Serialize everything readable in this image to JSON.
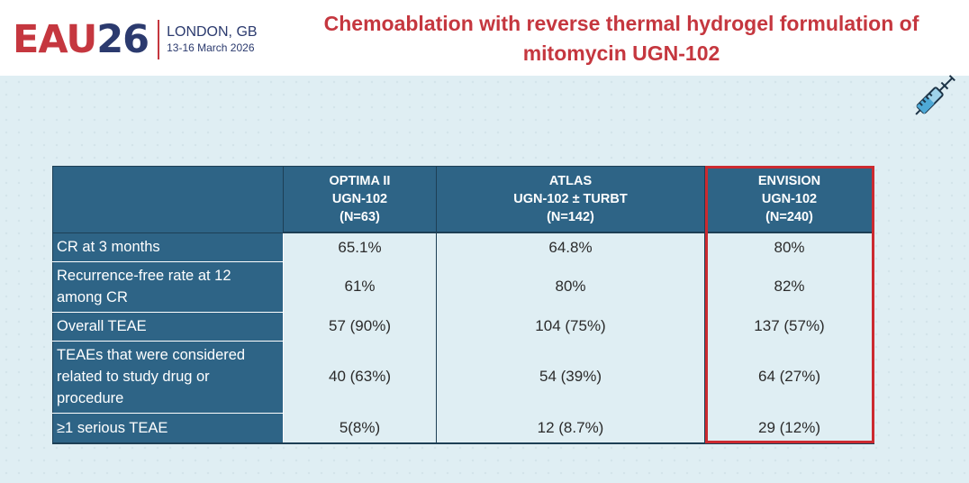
{
  "logo": {
    "brand_left": "EAU",
    "brand_right": "26",
    "city": "LONDON, GB",
    "dates": "13-16 March 2026"
  },
  "title_line1": "Chemoablation with reverse thermal hydrogel formulation of",
  "title_line2": "mitomycin UGN-102",
  "icons": {
    "syringe": "syringe-icon"
  },
  "colors": {
    "header_fill": "#2e6486",
    "title_red": "#c5373f",
    "brand_blue": "#2b3a6e",
    "highlight_red": "#cc2a30",
    "background": "#dfeef3"
  },
  "table": {
    "columns": [
      {
        "name": "OPTIMA II",
        "sub": "UGN-102",
        "n": "(N=63)"
      },
      {
        "name": "ATLAS",
        "sub": "UGN-102 ± TURBT",
        "n": "(N=142)"
      },
      {
        "name": "ENVISION",
        "sub": "UGN-102",
        "n": "(N=240)"
      }
    ],
    "highlighted_column": "ENVISION",
    "rows": [
      {
        "label": "CR at 3 months",
        "values": [
          "65.1%",
          "64.8%",
          "80%"
        ]
      },
      {
        "label": "Recurrence-free rate at 12 among CR",
        "values": [
          "61%",
          "80%",
          "82%"
        ]
      },
      {
        "label": "Overall TEAE",
        "values": [
          "57 (90%)",
          "104 (75%)",
          "137 (57%)"
        ]
      },
      {
        "label": "TEAEs that were considered related to study drug or procedure",
        "values": [
          "40 (63%)",
          "54 (39%)",
          "64 (27%)"
        ]
      },
      {
        "label": "≥1 serious TEAE",
        "values": [
          "5(8%)",
          "12 (8.7%)",
          "29 (12%)"
        ]
      }
    ]
  }
}
